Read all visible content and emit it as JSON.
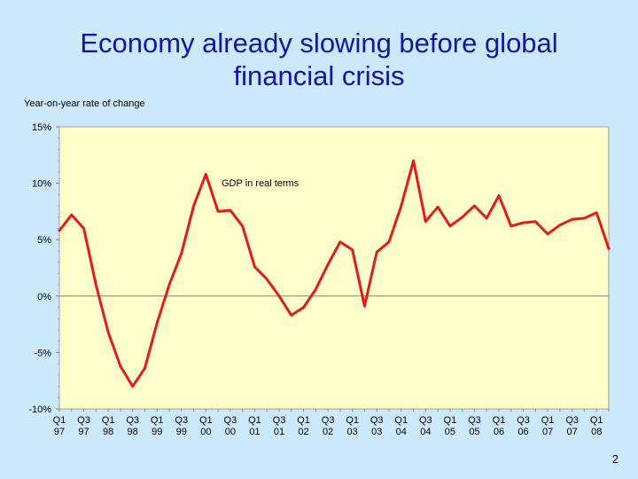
{
  "slide": {
    "title_line1": "Economy already slowing before global",
    "title_line2": "financial crisis",
    "page_number": "2"
  },
  "chart_data": {
    "type": "line",
    "title": "",
    "ylabel": "Year-on-year rate of change",
    "xlabel": "",
    "ylim": [
      -10,
      15
    ],
    "yticks": [
      15,
      10,
      5,
      0,
      -5,
      -10
    ],
    "ytick_labels": [
      "15%",
      "10%",
      "5%",
      "0%",
      "-5%",
      "-10%"
    ],
    "xtick_labels": [
      [
        "Q1",
        "97"
      ],
      [
        "Q3",
        "97"
      ],
      [
        "Q1",
        "98"
      ],
      [
        "Q3",
        "98"
      ],
      [
        "Q1",
        "99"
      ],
      [
        "Q3",
        "99"
      ],
      [
        "Q1",
        "00"
      ],
      [
        "Q3",
        "00"
      ],
      [
        "Q1",
        "01"
      ],
      [
        "Q3",
        "01"
      ],
      [
        "Q1",
        "02"
      ],
      [
        "Q3",
        "02"
      ],
      [
        "Q1",
        "03"
      ],
      [
        "Q3",
        "03"
      ],
      [
        "Q1",
        "04"
      ],
      [
        "Q3",
        "04"
      ],
      [
        "Q1",
        "05"
      ],
      [
        "Q3",
        "05"
      ],
      [
        "Q1",
        "06"
      ],
      [
        "Q3",
        "06"
      ],
      [
        "Q1",
        "07"
      ],
      [
        "Q3",
        "07"
      ],
      [
        "Q1",
        "08"
      ]
    ],
    "annotation": "GDP in real terms",
    "series": [
      {
        "name": "GDP in real terms",
        "color": "#e31b1b",
        "values": [
          5.8,
          7.2,
          6.0,
          1.0,
          -3.2,
          -6.2,
          -8.0,
          -6.4,
          -2.4,
          1.0,
          3.8,
          8.0,
          10.8,
          7.5,
          7.6,
          6.2,
          2.6,
          1.5,
          0.0,
          -1.7,
          -1.0,
          0.6,
          2.8,
          4.8,
          4.1,
          -0.9,
          3.9,
          4.8,
          8.0,
          12.0,
          6.6,
          7.9,
          6.2,
          7.0,
          8.0,
          6.9,
          8.9,
          6.2,
          6.5,
          6.6,
          5.5,
          6.3,
          6.8,
          6.9,
          7.4,
          4.2
        ]
      }
    ]
  }
}
